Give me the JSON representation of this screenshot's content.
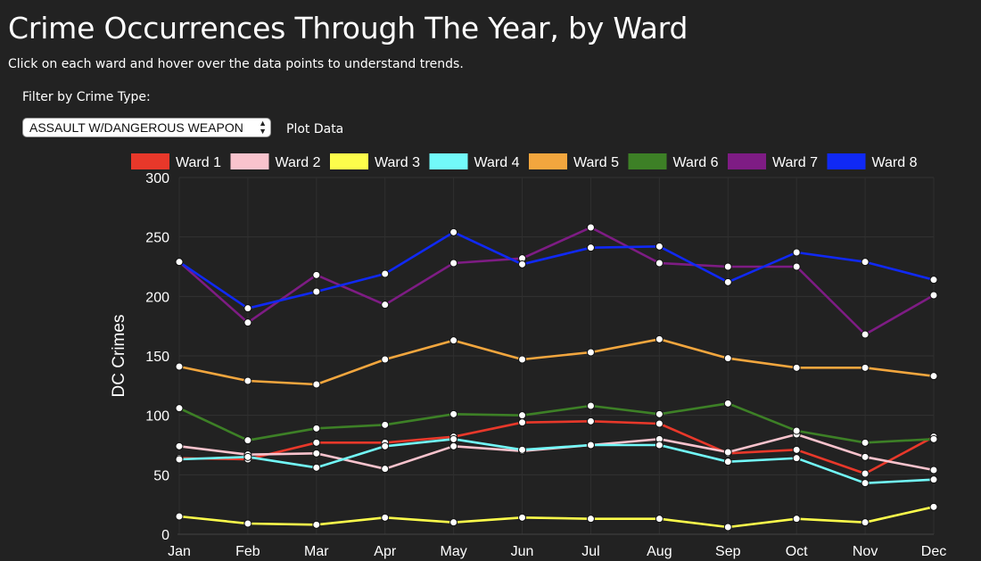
{
  "header": {
    "title": "Crime Occurrences Through The Year, by Ward",
    "subtitle": "Click on each ward and hover over the data points to understand trends."
  },
  "filter": {
    "label": "Filter by Crime Type:",
    "selected": "ASSAULT W/DANGEROUS WEAPON",
    "plot_button": "Plot Data"
  },
  "chart_data": {
    "type": "line",
    "title": "",
    "xlabel": "",
    "ylabel": "DC Crimes",
    "ylim": [
      0,
      300
    ],
    "yticks": [
      0,
      50,
      100,
      150,
      200,
      250,
      300
    ],
    "grid": true,
    "legend_position": "top",
    "categories": [
      "Jan",
      "Feb",
      "Mar",
      "Apr",
      "May",
      "Jun",
      "Jul",
      "Aug",
      "Sep",
      "Oct",
      "Nov",
      "Dec"
    ],
    "series": [
      {
        "name": "Ward 1",
        "color": "#e8382a",
        "values": [
          64,
          63,
          77,
          77,
          82,
          94,
          95,
          93,
          68,
          71,
          51,
          82
        ]
      },
      {
        "name": "Ward 2",
        "color": "#f9c3cd",
        "values": [
          74,
          67,
          68,
          55,
          74,
          70,
          75,
          80,
          69,
          84,
          65,
          54
        ]
      },
      {
        "name": "Ward 3",
        "color": "#fdfd4b",
        "values": [
          15,
          9,
          8,
          14,
          10,
          14,
          13,
          13,
          6,
          13,
          10,
          23
        ]
      },
      {
        "name": "Ward 4",
        "color": "#72f9f9",
        "values": [
          63,
          65,
          56,
          74,
          80,
          71,
          75,
          75,
          61,
          64,
          43,
          46
        ]
      },
      {
        "name": "Ward 5",
        "color": "#f2a63e",
        "values": [
          141,
          129,
          126,
          147,
          163,
          147,
          153,
          164,
          148,
          140,
          140,
          133
        ]
      },
      {
        "name": "Ward 6",
        "color": "#3d8026",
        "values": [
          106,
          79,
          89,
          92,
          101,
          100,
          108,
          101,
          110,
          87,
          77,
          80
        ]
      },
      {
        "name": "Ward 7",
        "color": "#7e1c84",
        "values": [
          229,
          178,
          218,
          193,
          228,
          232,
          258,
          228,
          225,
          225,
          168,
          201
        ]
      },
      {
        "name": "Ward 8",
        "color": "#1029f5",
        "values": [
          229,
          190,
          204,
          219,
          254,
          227,
          241,
          242,
          212,
          237,
          229,
          214
        ]
      }
    ]
  }
}
